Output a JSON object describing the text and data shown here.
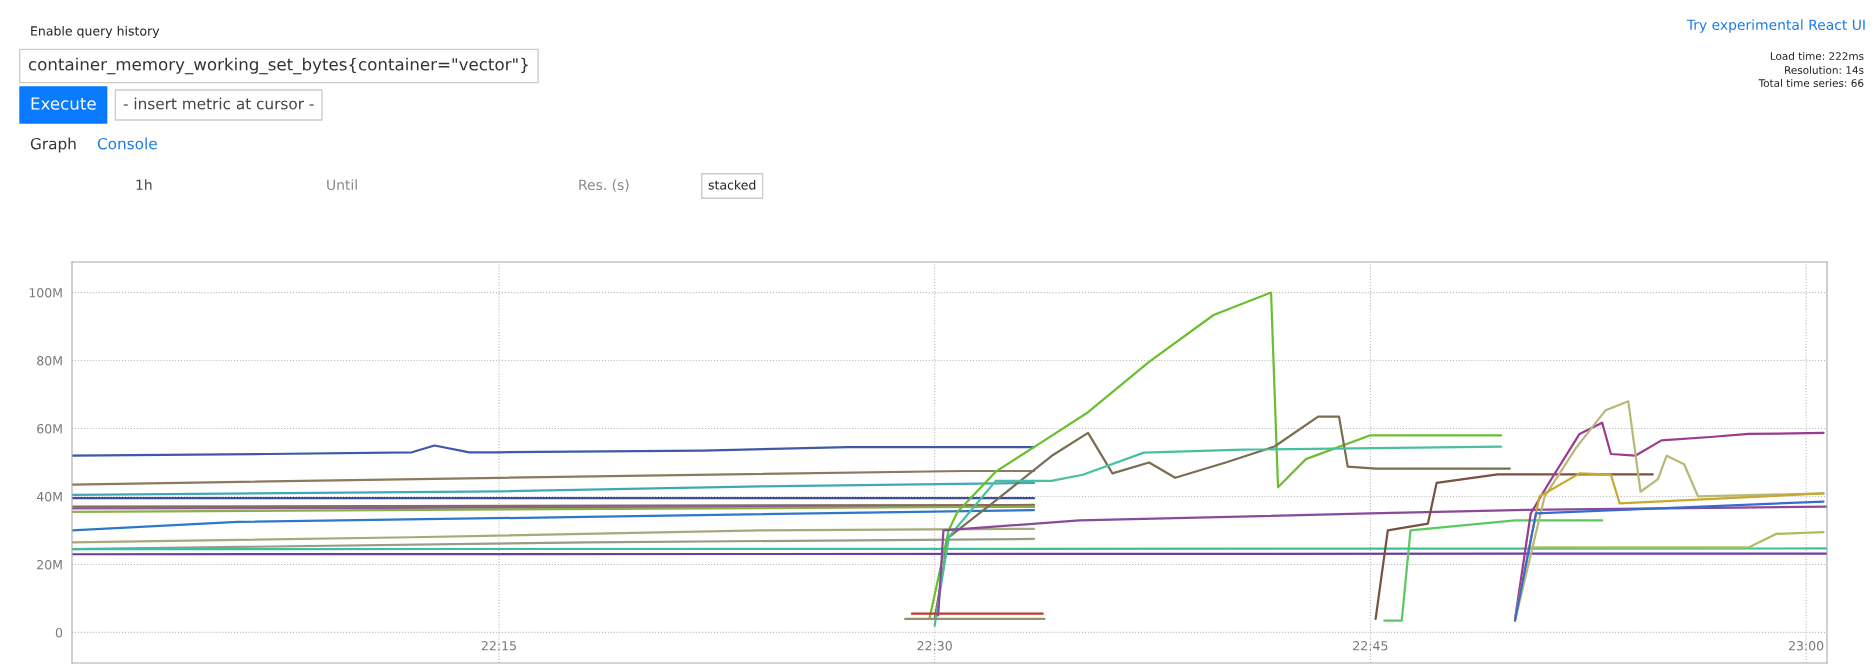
{
  "chart_data": {
    "type": "line",
    "annotations": [
      "Enable query history",
      "Try experimental React UI",
      "container_memory_working_set_bytes{container=\"vector\"}",
      "Execute",
      "- insert metric at cursor -",
      "Load time: 222ms",
      "Resolution: 14s",
      "Total time series: 66",
      "Graph",
      "Console",
      "1h",
      "Until",
      "Res. (s)",
      "stacked"
    ],
    "xlim": [
      22.005,
      23.012
    ],
    "xticks": [
      {
        "value": 22.25,
        "label": "22:15"
      },
      {
        "value": 22.5,
        "label": "22:30"
      },
      {
        "value": 22.75,
        "label": "22:45"
      },
      {
        "value": 23.0,
        "label": "23:00"
      }
    ],
    "ylim": [
      -9,
      109
    ],
    "yticks": [
      0,
      {
        "value": 20,
        "label": "20M"
      },
      {
        "value": 40,
        "label": "40M"
      },
      {
        "value": 60,
        "label": "60M"
      },
      {
        "value": 80,
        "label": "80M"
      },
      {
        "value": 100,
        "label": "100M"
      }
    ],
    "grid": true,
    "series": [
      {
        "color": "#4058a8",
        "x": [
          22.005,
          22.117,
          22.2,
          22.213,
          22.233,
          22.25,
          22.367,
          22.45,
          22.557
        ],
        "values": [
          52,
          52.5,
          53,
          55,
          53,
          53,
          53.5,
          54.5,
          54.5
        ]
      },
      {
        "color": "#8a7a5e",
        "x": [
          22.005,
          22.25,
          22.517,
          22.557
        ],
        "values": [
          43.5,
          45.5,
          47.5,
          47.5
        ]
      },
      {
        "color": "#3fa8b8",
        "x": [
          22.005,
          22.25,
          22.4,
          22.557
        ],
        "values": [
          40.5,
          41.5,
          43,
          44
        ]
      },
      {
        "color": "#3b4fa0",
        "x": [
          22.005,
          22.557
        ],
        "values": [
          39.5,
          39.5
        ]
      },
      {
        "color": "#8a6a5a",
        "x": [
          22.005,
          22.557
        ],
        "values": [
          37,
          37.5
        ]
      },
      {
        "color": "#8a5aa0",
        "x": [
          22.005,
          22.557
        ],
        "values": [
          36.5,
          37
        ]
      },
      {
        "color": "#8ab048",
        "x": [
          22.005,
          22.557
        ],
        "values": [
          35.5,
          37
        ]
      },
      {
        "color": "#2f77c8",
        "x": [
          22.005,
          22.1,
          22.3,
          22.557
        ],
        "values": [
          30,
          32.5,
          34,
          36
        ]
      },
      {
        "color": "#a8a878",
        "x": [
          22.005,
          22.2,
          22.4,
          22.557
        ],
        "values": [
          26.5,
          28,
          30,
          30.5
        ]
      },
      {
        "color": "#9a9a88",
        "x": [
          22.005,
          22.3,
          22.557
        ],
        "values": [
          24.5,
          26.5,
          27.5
        ]
      },
      {
        "color": "#3cbf9a",
        "x": [
          22.005,
          23.012
        ],
        "values": [
          24.5,
          24.7
        ]
      },
      {
        "color": "#6a3fa0",
        "x": [
          22.005,
          23.012
        ],
        "values": [
          23,
          23.2
        ]
      },
      {
        "color": "#6abf30",
        "x": [
          22.497,
          22.508,
          22.513,
          22.535,
          22.563,
          22.588,
          22.623,
          22.66,
          22.693,
          22.697,
          22.713,
          22.75,
          22.825
        ],
        "values": [
          4,
          30,
          35.4,
          47.3,
          56.5,
          64.8,
          79.6,
          93.4,
          100,
          42.7,
          51,
          58,
          58
        ]
      },
      {
        "color": "#7a6e52",
        "x": [
          22.5,
          22.508,
          22.533,
          22.567,
          22.588,
          22.602,
          22.623,
          22.638,
          22.667,
          22.695,
          22.72,
          22.732,
          22.737,
          22.753,
          22.83
        ],
        "values": [
          4,
          28,
          38,
          51.9,
          58.7,
          46.8,
          50,
          45.5,
          50,
          54.7,
          63.5,
          63.5,
          48.8,
          48.2,
          48.2
        ]
      },
      {
        "color": "#48c0a0",
        "x": [
          22.5,
          22.508,
          22.535,
          22.567,
          22.585,
          22.62,
          22.677,
          22.825
        ],
        "values": [
          2,
          28,
          44.6,
          44.6,
          46.4,
          52.9,
          53.8,
          54.7
        ]
      },
      {
        "color": "#c03a2a",
        "x": [
          22.487,
          22.562
        ],
        "values": [
          5.5,
          5.5
        ]
      },
      {
        "color": "#9a9070",
        "x": [
          22.483,
          22.563
        ],
        "values": [
          4,
          4
        ]
      },
      {
        "color": "#8a4a9a",
        "x": [
          22.502,
          22.505,
          22.583,
          22.75,
          22.833,
          23.012
        ],
        "values": [
          5,
          30,
          33,
          35,
          36,
          37
        ]
      },
      {
        "color": "#5cc860",
        "x": [
          22.758,
          22.768,
          22.773,
          22.833,
          22.883
        ],
        "values": [
          3.5,
          3.5,
          30,
          33,
          33
        ]
      },
      {
        "color": "#7a5040",
        "x": [
          22.753,
          22.76,
          22.783,
          22.788,
          22.823,
          22.912
        ],
        "values": [
          4,
          30,
          32,
          44,
          46.5,
          46.5
        ]
      },
      {
        "color": "#9a3a90",
        "x": [
          22.833,
          22.842,
          22.852,
          22.87,
          22.883,
          22.888,
          22.902,
          22.917,
          22.945,
          22.967,
          23.01
        ],
        "values": [
          4,
          35,
          43.6,
          58.4,
          61.7,
          52.5,
          52,
          56.5,
          57.5,
          58.4,
          58.7
        ]
      },
      {
        "color": "#b8b878",
        "x": [
          22.833,
          22.85,
          22.868,
          22.885,
          22.898,
          22.905,
          22.915,
          22.92,
          22.93,
          22.938,
          23.01
        ],
        "values": [
          3.5,
          40,
          54.3,
          65.4,
          68,
          41.4,
          45.1,
          52,
          49.5,
          40,
          40.9
        ]
      },
      {
        "color": "#c8a830",
        "x": [
          22.833,
          22.847,
          22.87,
          22.888,
          22.893,
          23.01
        ],
        "values": [
          4,
          40,
          46.8,
          46.4,
          38,
          40.9
        ]
      },
      {
        "color": "#a8c060",
        "x": [
          22.842,
          22.967,
          22.983,
          23.01
        ],
        "values": [
          25,
          25,
          29,
          29.5
        ]
      },
      {
        "color": "#3a6ad0",
        "x": [
          22.833,
          22.845,
          23.01
        ],
        "values": [
          3.5,
          35,
          38.5
        ]
      }
    ]
  }
}
